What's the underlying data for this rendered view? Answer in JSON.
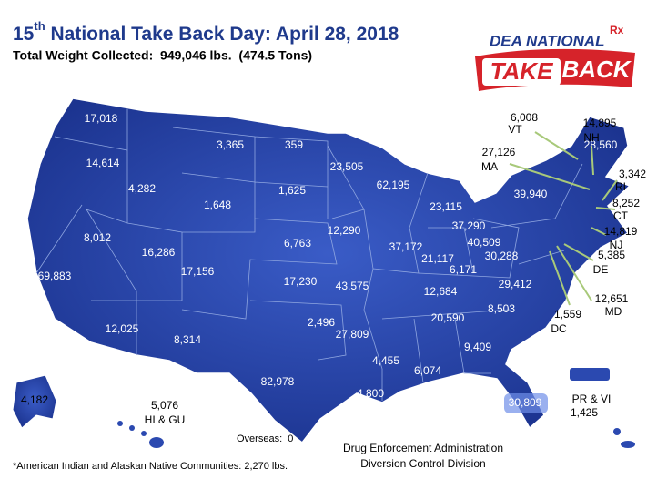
{
  "header": {
    "title_prefix": "15",
    "title_sup": "th",
    "title_rest": " National Take Back Day: April 28, 2018",
    "subtitle": "Total Weight Collected:  949,046 lbs.  (474.5 Tons)"
  },
  "logo": {
    "line1": "DEA NATIONAL",
    "rx": "Rx",
    "take": "TAKE",
    "back": "BACK"
  },
  "states": [
    {
      "value": "17,018"
    },
    {
      "value": "14,614"
    },
    {
      "value": "69,883"
    },
    {
      "value": "8,012"
    },
    {
      "value": "4,282"
    },
    {
      "value": "3,365"
    },
    {
      "value": "1,648"
    },
    {
      "value": "16,286"
    },
    {
      "value": "12,025"
    },
    {
      "value": "17,156"
    },
    {
      "value": "8,314"
    },
    {
      "value": "359"
    },
    {
      "value": "1,625"
    },
    {
      "value": "6,763"
    },
    {
      "value": "17,230"
    },
    {
      "value": "2,496"
    },
    {
      "value": "82,978"
    },
    {
      "value": "23,505"
    },
    {
      "value": "12,290"
    },
    {
      "value": "43,575"
    },
    {
      "value": "27,809"
    },
    {
      "value": "4,800"
    },
    {
      "value": "62,195"
    },
    {
      "value": "37,172"
    },
    {
      "value": "4,455"
    },
    {
      "value": "23,115"
    },
    {
      "value": "21,117"
    },
    {
      "value": "40,509"
    },
    {
      "value": "12,684"
    },
    {
      "value": "20,590"
    },
    {
      "value": "6,074"
    },
    {
      "value": "9,409"
    },
    {
      "value": "30,809"
    },
    {
      "value": "8,503"
    },
    {
      "value": "29,412"
    },
    {
      "value": "30,288"
    },
    {
      "value": "6,171"
    },
    {
      "value": "37,290"
    },
    {
      "value": "39,940"
    },
    {
      "value": "28,560"
    },
    {
      "value": "4,182"
    },
    {
      "value": "5,076",
      "abbr": "HI & GU"
    },
    {
      "value": "6,008",
      "abbr": "VT"
    },
    {
      "value": "14,895",
      "abbr": "NH"
    },
    {
      "value": "27,126",
      "abbr": "MA"
    },
    {
      "value": "3,342",
      "abbr": "RI"
    },
    {
      "value": "8,252",
      "abbr": "CT"
    },
    {
      "value": "14,819",
      "abbr": "NJ"
    },
    {
      "value": "5,385",
      "abbr": "DE"
    },
    {
      "value": "12,651",
      "abbr": "MD"
    },
    {
      "value": "1,559",
      "abbr": "DC"
    },
    {
      "value": "1,425",
      "abbr": "PR & VI"
    }
  ],
  "footer": {
    "overseas": "Overseas:  0",
    "note": "*American Indian and Alaskan Native Communities: 2,270 lbs.",
    "agency_line1": "Drug Enforcement Administration",
    "agency_line2": "Diversion Control Division"
  }
}
